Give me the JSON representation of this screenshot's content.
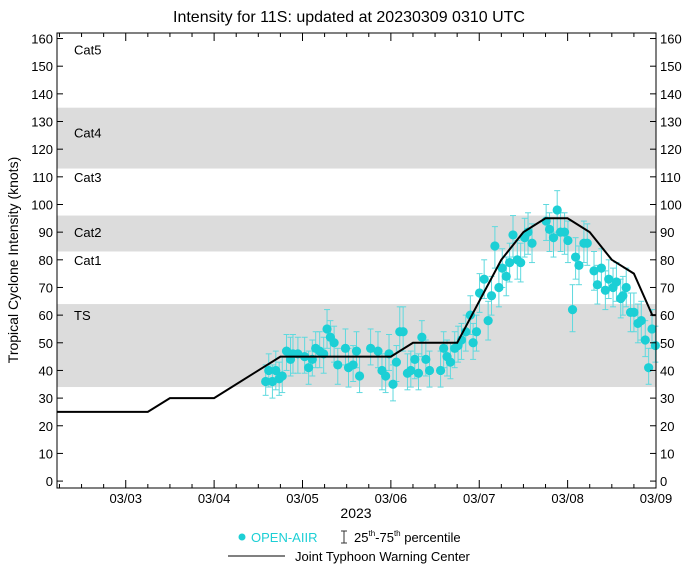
{
  "chart_data": {
    "type": "scatter",
    "title": "Intensity for 11S: updated at 20230309 0310 UTC",
    "ylabel": "Tropical Cyclone Intensity (knots)",
    "xlabel": "2023",
    "ylim": [
      -2.5,
      162
    ],
    "xlim": [
      "03/02 05:20",
      "03/09 00:00"
    ],
    "yticks": [
      0,
      10,
      20,
      30,
      40,
      50,
      60,
      70,
      80,
      90,
      100,
      110,
      120,
      130,
      140,
      150,
      160
    ],
    "xticks": [
      {
        "label": "03/03",
        "t": "03/03 00:00"
      },
      {
        "label": "03/04",
        "t": "03/04 00:00"
      },
      {
        "label": "03/05",
        "t": "03/05 00:00"
      },
      {
        "label": "03/06",
        "t": "03/06 00:00"
      },
      {
        "label": "03/07",
        "t": "03/07 00:00"
      },
      {
        "label": "03/08",
        "t": "03/08 00:00"
      },
      {
        "label": "03/09",
        "t": "03/09 00:00"
      }
    ],
    "grid": false,
    "bands": [
      {
        "label": "TS",
        "range": [
          34,
          64
        ],
        "shaded": true,
        "label_y": 60
      },
      {
        "label": "Cat1",
        "range": [
          64,
          83
        ],
        "shaded": false,
        "label_y": 80
      },
      {
        "label": "Cat2",
        "range": [
          83,
          96
        ],
        "shaded": true,
        "label_y": 90
      },
      {
        "label": "Cat3",
        "range": [
          96,
          113
        ],
        "shaded": false,
        "label_y": 110
      },
      {
        "label": "Cat4",
        "range": [
          113,
          135
        ],
        "shaded": true,
        "label_y": 126
      },
      {
        "label": "Cat5",
        "range": [
          135,
          162
        ],
        "shaded": false,
        "label_y": 156
      }
    ],
    "colors": {
      "open_aiir": "#1ccfd5",
      "error_bar": "#5fd9de",
      "jtwc": "#000000",
      "band": "#dcdcdc"
    },
    "legend": {
      "placement": "bottom",
      "open_aiir": "OPEN-AIIR",
      "pct_a": "25",
      "pct_a_sup": "th",
      "pct_mid": "-75",
      "pct_b_sup": "th",
      "pct_end": " percentile",
      "jtwc": "Joint Typhoon Warning Center"
    },
    "series": [
      {
        "name": "OPEN-AIIR",
        "points_fields": [
          "time",
          "value",
          "p25",
          "p75"
        ],
        "points": [
          [
            "03/04 14:00",
            36,
            31,
            42
          ],
          [
            "03/04 14:50",
            40,
            34,
            46
          ],
          [
            "03/04 15:50",
            36,
            30,
            42
          ],
          [
            "03/04 16:45",
            40,
            33,
            47
          ],
          [
            "03/04 17:40",
            37,
            31,
            43
          ],
          [
            "03/04 18:30",
            38,
            32,
            45
          ],
          [
            "03/04 19:40",
            47,
            40,
            53
          ],
          [
            "03/04 20:45",
            44,
            38,
            52
          ],
          [
            "03/04 21:25",
            46,
            39,
            53
          ],
          [
            "03/04 22:45",
            46,
            39,
            52
          ],
          [
            "03/05 00:35",
            45,
            39,
            52
          ],
          [
            "03/05 01:40",
            41,
            35,
            47
          ],
          [
            "03/05 02:40",
            44,
            38,
            51
          ],
          [
            "03/05 03:35",
            48,
            41,
            54
          ],
          [
            "03/05 04:40",
            47,
            41,
            54
          ],
          [
            "03/05 05:45",
            46,
            39,
            52
          ],
          [
            "03/05 06:40",
            55,
            48,
            62
          ],
          [
            "03/05 07:35",
            52,
            45,
            58
          ],
          [
            "03/05 08:35",
            50,
            43,
            56
          ],
          [
            "03/05 09:35",
            42,
            35,
            48
          ],
          [
            "03/05 11:40",
            48,
            42,
            55
          ],
          [
            "03/05 12:30",
            41,
            34,
            48
          ],
          [
            "03/05 13:45",
            42,
            36,
            49
          ],
          [
            "03/05 14:40",
            47,
            41,
            54
          ],
          [
            "03/05 15:30",
            38,
            32,
            45
          ],
          [
            "03/05 18:30",
            48,
            42,
            55
          ],
          [
            "03/05 20:30",
            47,
            41,
            54
          ],
          [
            "03/05 21:35",
            40,
            33,
            46
          ],
          [
            "03/05 22:35",
            38,
            32,
            45
          ],
          [
            "03/05 23:30",
            46,
            40,
            53
          ],
          [
            "03/06 00:35",
            35,
            29,
            42
          ],
          [
            "03/06 01:30",
            43,
            36,
            49
          ],
          [
            "03/06 02:25",
            54,
            47,
            63
          ],
          [
            "03/06 03:20",
            54,
            47,
            63
          ],
          [
            "03/06 04:30",
            39,
            33,
            46
          ],
          [
            "03/06 05:25",
            40,
            34,
            47
          ],
          [
            "03/06 06:30",
            44,
            37,
            50
          ],
          [
            "03/06 07:30",
            39,
            33,
            46
          ],
          [
            "03/06 08:25",
            52,
            45,
            58
          ],
          [
            "03/06 09:30",
            44,
            38,
            51
          ],
          [
            "03/06 10:30",
            40,
            34,
            47
          ],
          [
            "03/06 13:30",
            40,
            34,
            47
          ],
          [
            "03/06 14:20",
            48,
            41,
            54
          ],
          [
            "03/06 15:15",
            45,
            38,
            51
          ],
          [
            "03/06 16:10",
            43,
            37,
            50
          ],
          [
            "03/06 17:20",
            48,
            41,
            54
          ],
          [
            "03/06 18:15",
            49,
            43,
            56
          ],
          [
            "03/06 19:10",
            51,
            44,
            57
          ],
          [
            "03/06 20:20",
            54,
            47,
            60
          ],
          [
            "03/06 21:35",
            60,
            53,
            67
          ],
          [
            "03/06 22:20",
            50,
            44,
            57
          ],
          [
            "03/06 23:15",
            54,
            47,
            60
          ],
          [
            "03/07 00:05",
            68,
            61,
            75
          ],
          [
            "03/07 01:20",
            73,
            66,
            80
          ],
          [
            "03/07 02:25",
            58,
            51,
            65
          ],
          [
            "03/07 03:20",
            67,
            60,
            74
          ],
          [
            "03/07 04:15",
            85,
            77,
            92
          ],
          [
            "03/07 05:20",
            70,
            63,
            77
          ],
          [
            "03/07 06:15",
            77,
            70,
            84
          ],
          [
            "03/07 07:20",
            74,
            67,
            81
          ],
          [
            "03/07 08:15",
            79,
            72,
            86
          ],
          [
            "03/07 09:10",
            89,
            81,
            96
          ],
          [
            "03/07 10:20",
            80,
            73,
            87
          ],
          [
            "03/07 11:15",
            79,
            72,
            86
          ],
          [
            "03/07 12:20",
            88,
            81,
            95
          ],
          [
            "03/07 13:15",
            90,
            82,
            97
          ],
          [
            "03/07 14:20",
            86,
            79,
            93
          ],
          [
            "03/07 18:10",
            94,
            87,
            100
          ],
          [
            "03/07 19:05",
            91,
            83,
            97
          ],
          [
            "03/07 20:10",
            88,
            81,
            95
          ],
          [
            "03/07 21:10",
            98,
            90,
            105
          ],
          [
            "03/07 22:05",
            90,
            83,
            97
          ],
          [
            "03/07 23:10",
            90,
            82,
            97
          ],
          [
            "03/08 00:05",
            87,
            79,
            94
          ],
          [
            "03/08 01:20",
            62,
            54,
            71
          ],
          [
            "03/08 02:10",
            81,
            73,
            88
          ],
          [
            "03/08 03:05",
            78,
            71,
            85
          ],
          [
            "03/08 04:25",
            86,
            79,
            94
          ],
          [
            "03/08 05:20",
            86,
            78,
            93
          ],
          [
            "03/08 07:10",
            76,
            69,
            83
          ],
          [
            "03/08 08:05",
            71,
            64,
            78
          ],
          [
            "03/08 09:10",
            77,
            70,
            84
          ],
          [
            "03/08 10:15",
            69,
            62,
            76
          ],
          [
            "03/08 11:10",
            73,
            66,
            80
          ],
          [
            "03/08 12:20",
            70,
            63,
            77
          ],
          [
            "03/08 13:15",
            72,
            65,
            79
          ],
          [
            "03/08 14:25",
            66,
            59,
            73
          ],
          [
            "03/08 15:00",
            67,
            60,
            74
          ],
          [
            "03/08 15:55",
            70,
            63,
            77
          ],
          [
            "03/08 17:05",
            61,
            54,
            68
          ],
          [
            "03/08 18:00",
            61,
            54,
            68
          ],
          [
            "03/08 19:05",
            57,
            50,
            64
          ],
          [
            "03/08 20:00",
            58,
            51,
            65
          ],
          [
            "03/08 21:05",
            51,
            45,
            58
          ],
          [
            "03/08 22:00",
            41,
            35,
            48
          ],
          [
            "03/08 22:55",
            55,
            48,
            62
          ],
          [
            "03/08 23:50",
            49,
            43,
            56
          ]
        ]
      },
      {
        "name": "Joint Typhoon Warning Center",
        "points_fields": [
          "time",
          "value"
        ],
        "points": [
          [
            "03/02 05:20",
            25
          ],
          [
            "03/03 06:00",
            25
          ],
          [
            "03/03 12:00",
            30
          ],
          [
            "03/04 00:00",
            30
          ],
          [
            "03/04 18:00",
            45
          ],
          [
            "03/06 00:00",
            45
          ],
          [
            "03/06 06:00",
            50
          ],
          [
            "03/06 18:00",
            50
          ],
          [
            "03/07 00:00",
            65
          ],
          [
            "03/07 06:00",
            80
          ],
          [
            "03/07 12:00",
            90
          ],
          [
            "03/07 18:00",
            95
          ],
          [
            "03/08 00:00",
            95
          ],
          [
            "03/08 06:00",
            90
          ],
          [
            "03/08 12:00",
            80
          ],
          [
            "03/08 18:00",
            75
          ],
          [
            "03/08 23:00",
            60
          ],
          [
            "03/09 00:00",
            60
          ]
        ]
      }
    ]
  }
}
